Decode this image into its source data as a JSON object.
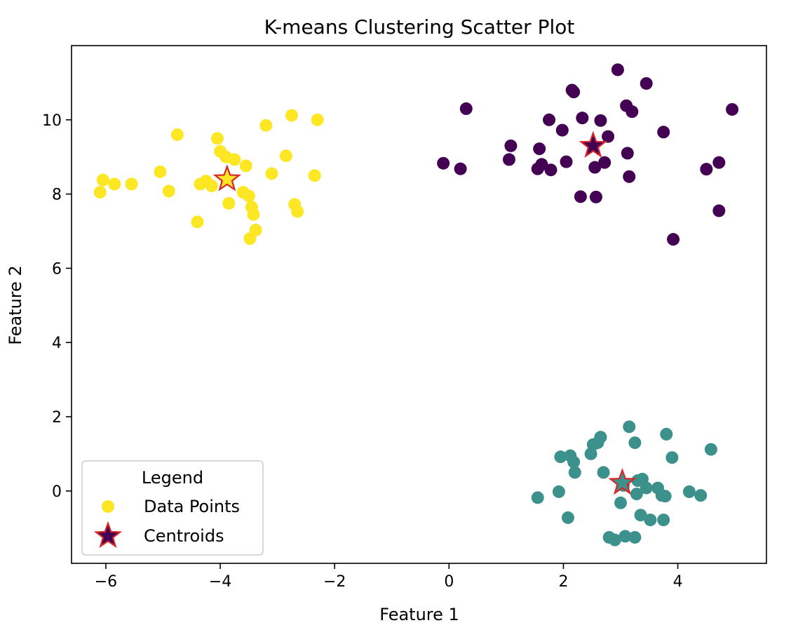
{
  "chart_data": {
    "type": "scatter",
    "title": "K-means Clustering Scatter Plot",
    "xlabel": "Feature 1",
    "ylabel": "Feature 2",
    "xlim": [
      -6.6,
      5.55
    ],
    "ylim": [
      -1.95,
      12.0
    ],
    "xticks": [
      -6,
      -4,
      -2,
      0,
      2,
      4
    ],
    "xtick_labels": [
      "−6",
      "−4",
      "−2",
      "0",
      "2",
      "4"
    ],
    "yticks": [
      0,
      2,
      4,
      6,
      8,
      10
    ],
    "ytick_labels": [
      "0",
      "2",
      "4",
      "6",
      "8",
      "10"
    ],
    "grid": false,
    "legend": {
      "title": "Legend",
      "placement": "lower-left",
      "entries": [
        {
          "label": "Data Points",
          "marker": "circle",
          "color": "#fde725"
        },
        {
          "label": "Centroids",
          "marker": "star",
          "color": "#440154",
          "edge_color": "#d62728"
        }
      ]
    },
    "colors": {
      "cluster_yellow": "#fde725",
      "cluster_purple": "#440154",
      "cluster_teal": "#3d918c",
      "centroid_edge": "#d62728"
    },
    "series": [
      {
        "cluster": "yellow",
        "color": "#fde725",
        "points": [
          [
            -6.1,
            8.05
          ],
          [
            -6.05,
            8.38
          ],
          [
            -5.85,
            8.27
          ],
          [
            -5.55,
            8.27
          ],
          [
            -5.05,
            8.6
          ],
          [
            -4.9,
            8.08
          ],
          [
            -4.75,
            9.6
          ],
          [
            -4.4,
            7.25
          ],
          [
            -4.35,
            8.27
          ],
          [
            -4.25,
            8.35
          ],
          [
            -4.15,
            8.22
          ],
          [
            -4.05,
            9.5
          ],
          [
            -4.0,
            9.15
          ],
          [
            -3.9,
            9.0
          ],
          [
            -3.85,
            7.75
          ],
          [
            -3.75,
            8.93
          ],
          [
            -3.6,
            8.05
          ],
          [
            -3.55,
            8.76
          ],
          [
            -3.5,
            7.95
          ],
          [
            -3.48,
            6.8
          ],
          [
            -3.45,
            7.65
          ],
          [
            -3.42,
            7.45
          ],
          [
            -3.38,
            7.03
          ],
          [
            -3.2,
            9.85
          ],
          [
            -3.1,
            8.55
          ],
          [
            -2.85,
            9.03
          ],
          [
            -2.75,
            10.12
          ],
          [
            -2.7,
            7.72
          ],
          [
            -2.65,
            7.53
          ],
          [
            -2.35,
            8.5
          ],
          [
            -2.3,
            10.0
          ]
        ]
      },
      {
        "cluster": "purple",
        "color": "#440154",
        "points": [
          [
            -0.1,
            8.83
          ],
          [
            0.2,
            8.68
          ],
          [
            0.3,
            10.3
          ],
          [
            1.05,
            8.93
          ],
          [
            1.08,
            9.3
          ],
          [
            1.55,
            8.68
          ],
          [
            1.58,
            9.22
          ],
          [
            1.62,
            8.8
          ],
          [
            1.75,
            10.0
          ],
          [
            1.78,
            8.65
          ],
          [
            1.98,
            9.72
          ],
          [
            2.05,
            8.87
          ],
          [
            2.15,
            10.8
          ],
          [
            2.18,
            10.75
          ],
          [
            2.3,
            7.93
          ],
          [
            2.33,
            10.05
          ],
          [
            2.55,
            8.72
          ],
          [
            2.57,
            7.92
          ],
          [
            2.65,
            9.98
          ],
          [
            2.72,
            8.85
          ],
          [
            2.78,
            9.55
          ],
          [
            2.95,
            11.35
          ],
          [
            3.1,
            10.38
          ],
          [
            3.12,
            9.1
          ],
          [
            3.15,
            8.47
          ],
          [
            3.2,
            10.22
          ],
          [
            3.45,
            10.98
          ],
          [
            3.75,
            9.67
          ],
          [
            3.92,
            6.78
          ],
          [
            4.5,
            8.67
          ],
          [
            4.72,
            8.85
          ],
          [
            4.72,
            7.55
          ],
          [
            4.95,
            10.28
          ]
        ]
      },
      {
        "cluster": "teal",
        "color": "#3d918c",
        "points": [
          [
            1.55,
            -0.18
          ],
          [
            1.92,
            -0.02
          ],
          [
            1.95,
            0.92
          ],
          [
            2.08,
            -0.72
          ],
          [
            2.12,
            0.95
          ],
          [
            2.18,
            0.78
          ],
          [
            2.2,
            0.5
          ],
          [
            2.48,
            1.0
          ],
          [
            2.52,
            1.25
          ],
          [
            2.6,
            1.3
          ],
          [
            2.65,
            1.45
          ],
          [
            2.7,
            0.5
          ],
          [
            2.8,
            -1.25
          ],
          [
            2.9,
            -1.32
          ],
          [
            3.0,
            -0.32
          ],
          [
            3.05,
            0.15
          ],
          [
            3.08,
            -1.22
          ],
          [
            3.15,
            1.73
          ],
          [
            3.25,
            -1.25
          ],
          [
            3.25,
            1.3
          ],
          [
            3.28,
            -0.08
          ],
          [
            3.3,
            0.28
          ],
          [
            3.35,
            -0.65
          ],
          [
            3.38,
            0.32
          ],
          [
            3.45,
            0.08
          ],
          [
            3.52,
            -0.78
          ],
          [
            3.65,
            0.08
          ],
          [
            3.72,
            -0.12
          ],
          [
            3.75,
            -0.78
          ],
          [
            3.78,
            -0.14
          ],
          [
            3.8,
            1.53
          ],
          [
            3.9,
            0.9
          ],
          [
            4.2,
            -0.02
          ],
          [
            4.4,
            -0.12
          ],
          [
            4.58,
            1.12
          ]
        ]
      }
    ],
    "centroids": [
      {
        "cluster": "yellow",
        "x": -3.88,
        "y": 8.4,
        "color": "#fde725"
      },
      {
        "cluster": "purple",
        "x": 2.52,
        "y": 9.3,
        "color": "#440154"
      },
      {
        "cluster": "teal",
        "x": 3.03,
        "y": 0.22,
        "color": "#3d918c"
      }
    ]
  }
}
